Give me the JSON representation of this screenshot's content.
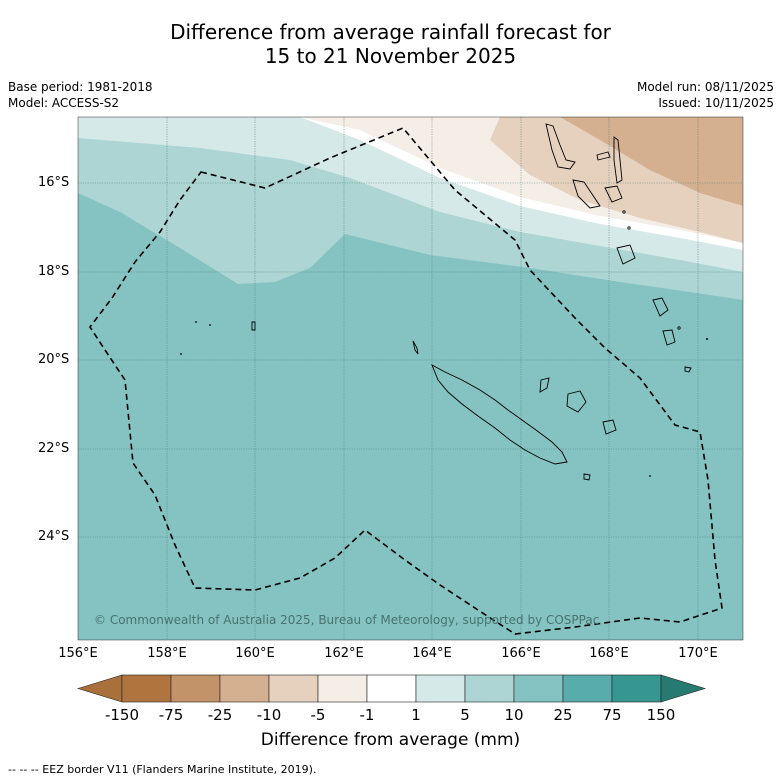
{
  "title": {
    "line1": "Difference from average rainfall forecast for",
    "line2": "15 to 21 November 2025"
  },
  "meta": {
    "base_period": "Base period: 1981-2018",
    "model": "Model: ACCESS-S2",
    "model_run": "Model run: 08/11/2025",
    "issued": "Issued: 10/11/2025"
  },
  "map": {
    "lat_labels": [
      "16°S",
      "18°S",
      "20°S",
      "22°S",
      "24°S"
    ],
    "lon_labels": [
      "156°E",
      "158°E",
      "160°E",
      "162°E",
      "164°E",
      "166°E",
      "168°E",
      "170°E"
    ],
    "copyright": "© Commonwealth of Australia 2025, Bureau of Meteorology, supported by COSPPac",
    "colors": {
      "above_25_75": "#85c3c2",
      "above_10_25": "#acd5d4",
      "above_5_10": "#d5e9e8",
      "near_normal": "#ffffff",
      "below_minus1_5": "#f4eee7",
      "below_5_10": "#e6d1bf",
      "below_10_25": "#d4b090"
    }
  },
  "colorbar": {
    "labels": [
      "-150",
      "-75",
      "-25",
      "-10",
      "-5",
      "-1",
      "1",
      "5",
      "10",
      "25",
      "75",
      "150"
    ],
    "colors": [
      "#a8703a",
      "#b0753f",
      "#c29268",
      "#d4b090",
      "#e6d1bf",
      "#f4eee7",
      "#ffffff",
      "#d5e9e8",
      "#acd5d4",
      "#85c3c2",
      "#58acab",
      "#35978f",
      "#267a72"
    ],
    "title": "Difference from average (mm)"
  },
  "footnote": "--  --  -- EEZ border V11 (Flanders Marine Institute, 2019)."
}
